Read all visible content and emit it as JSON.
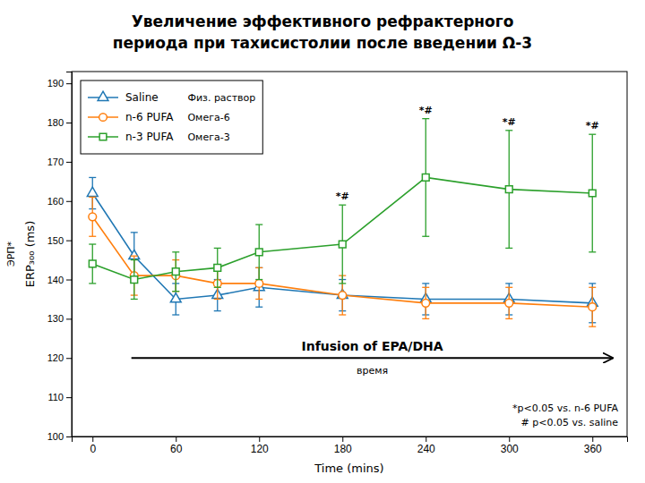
{
  "chart_data": {
    "type": "line",
    "title": "Увеличение эффективного рефрактерного",
    "subtitle": "периода при тахисистолии после введении Ω-3",
    "x": [
      0,
      30,
      60,
      90,
      120,
      180,
      240,
      300,
      360
    ],
    "series": [
      {
        "name": "Saline",
        "note": "Физ. раствор",
        "marker": "triangle",
        "line_style": "solid",
        "values": [
          162,
          146,
          135,
          136,
          138,
          136,
          135,
          135,
          134
        ],
        "errors": [
          4,
          6,
          4,
          4,
          5,
          4,
          4,
          4,
          5
        ]
      },
      {
        "name": "n-6 PUFA",
        "note": "Омега-6",
        "marker": "circle",
        "line_style": "solid",
        "values": [
          156,
          141,
          141,
          139,
          139,
          136,
          134,
          134,
          133
        ],
        "errors": [
          5,
          5,
          4,
          4,
          4,
          5,
          4,
          4,
          5
        ]
      },
      {
        "name": "n-3 PUFA",
        "note": "Омега-3",
        "marker": "square",
        "line_style": "solid",
        "values": [
          144,
          140,
          142,
          143,
          147,
          149,
          166,
          163,
          162
        ],
        "errors": [
          5,
          5,
          5,
          5,
          7,
          10,
          15,
          15,
          15
        ]
      }
    ],
    "xlabel": "Time (mins)",
    "ylabel": "ERP₃₀₀ (ms)",
    "xlim": [
      -15,
      385
    ],
    "ylim": [
      100,
      193
    ],
    "xticks": [
      0,
      60,
      120,
      180,
      240,
      300,
      360
    ],
    "yticks": [
      100,
      110,
      120,
      130,
      140,
      150,
      160,
      170,
      180,
      190
    ],
    "grid": false,
    "legend": "upper left",
    "arrow": {
      "x": [
        28,
        375
      ],
      "y": 120,
      "label": "Infusion of EPA/DHA",
      "sublabel": "время"
    },
    "notes": [
      "*p<0.05 vs. n-6 PUFA",
      "# p<0.05 vs. saline"
    ],
    "side_label": "ЭРП*",
    "point_notes": {
      "text": "*#",
      "series": "n-3 PUFA",
      "x": [
        180,
        240,
        300,
        360
      ]
    }
  }
}
